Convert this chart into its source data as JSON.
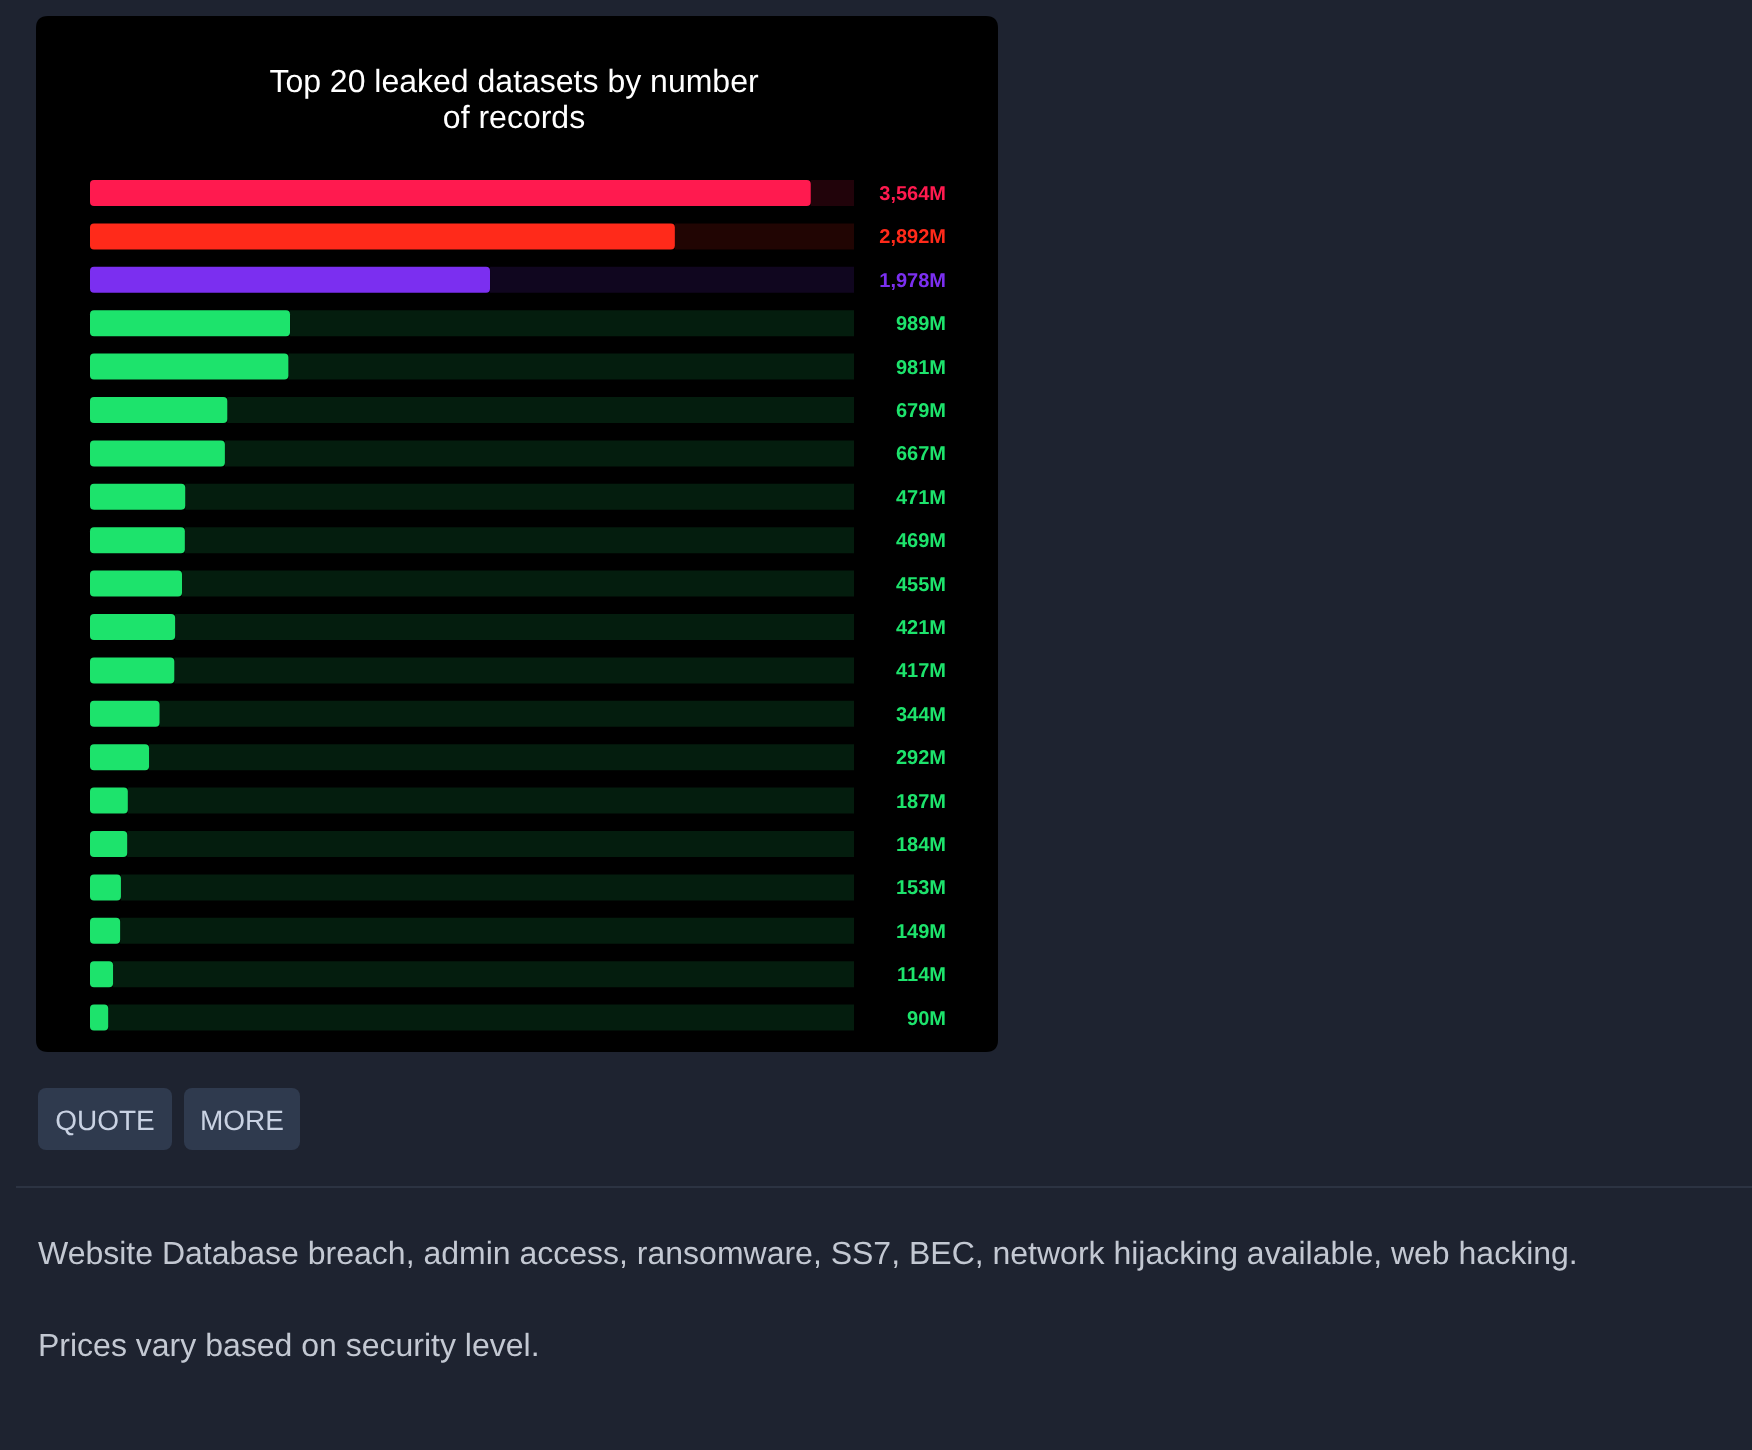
{
  "chart_data": {
    "type": "bar",
    "orientation": "horizontal",
    "title": "Top 20 leaked datasets by number of records",
    "categories": [
      null,
      null,
      null,
      null,
      null,
      null,
      null,
      null,
      null,
      null,
      null,
      null,
      null,
      null,
      null,
      null,
      null,
      null,
      null,
      null
    ],
    "values": [
      3564,
      2892,
      1978,
      989,
      981,
      679,
      667,
      471,
      469,
      455,
      421,
      417,
      344,
      292,
      187,
      184,
      153,
      149,
      114,
      90
    ],
    "colors": [
      "#ff1a4f",
      "#ff2a1a",
      "#7b2ff0",
      "#1de36c",
      "#1de36c",
      "#1de36c",
      "#1de36c",
      "#1de36c",
      "#1de36c",
      "#1de36c",
      "#1de36c",
      "#1de36c",
      "#1de36c",
      "#1de36c",
      "#1de36c",
      "#1de36c",
      "#1de36c",
      "#1de36c",
      "#1de36c",
      "#1de36c"
    ],
    "value_labels": [
      "3,564M",
      "2,892M",
      "1,978M",
      "989M",
      "981M",
      "679M",
      "667M",
      "471M",
      "469M",
      "455M",
      "421M",
      "417M",
      "344M",
      "292M",
      "187M",
      "184M",
      "153M",
      "149M",
      "114M",
      "90M"
    ],
    "annotations": [
      "QUOTE",
      "MORE",
      "Website Database breach, admin access, ransomware, SS7, BEC, network hijacking available, web hacking.",
      "Prices vary based on security level."
    ]
  }
}
